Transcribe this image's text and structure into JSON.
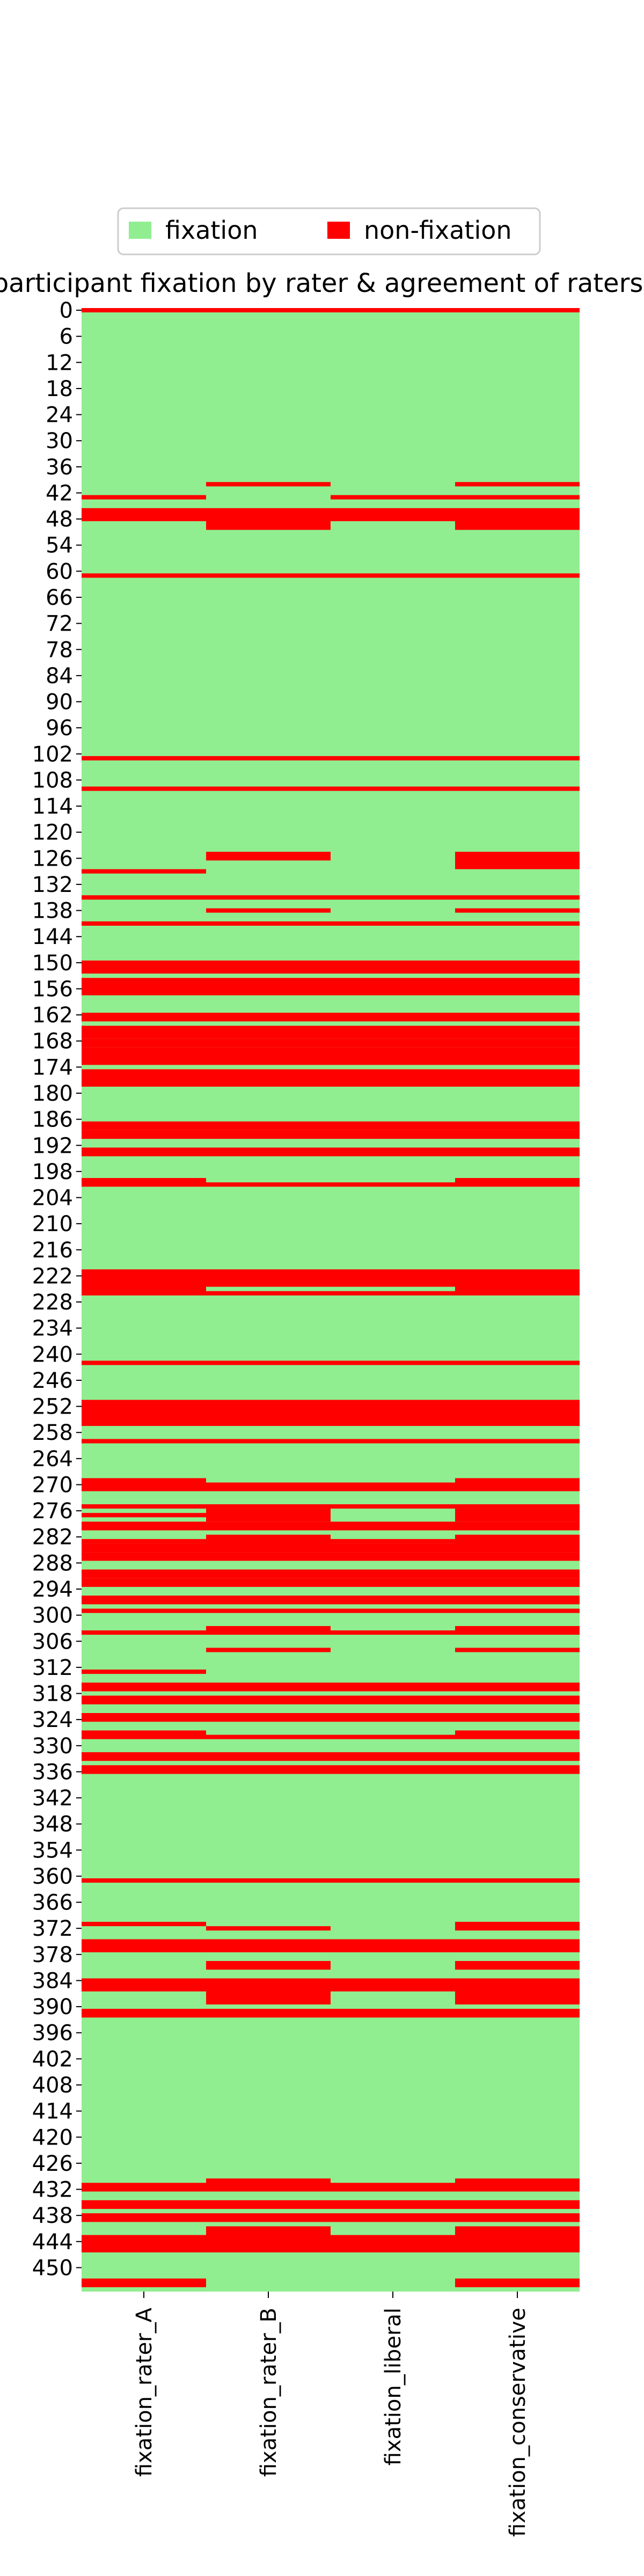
{
  "chart_data": {
    "type": "heatmap",
    "title": "participant fixation by rater & agreement of raters",
    "legend": {
      "placement": "top-center",
      "entries": [
        {
          "label": "fixation",
          "color": "#90ee90"
        },
        {
          "label": "non-fixation",
          "color": "#ff0000"
        }
      ]
    },
    "columns": [
      "fixation_rater_A",
      "fixation_rater_B",
      "fixation_liberal",
      "fixation_conservative"
    ],
    "y_ticks": [
      0,
      6,
      12,
      18,
      24,
      30,
      36,
      42,
      48,
      54,
      60,
      66,
      72,
      78,
      84,
      90,
      96,
      102,
      108,
      114,
      120,
      126,
      132,
      138,
      144,
      150,
      156,
      162,
      168,
      174,
      180,
      186,
      192,
      198,
      204,
      210,
      216,
      222,
      228,
      234,
      240,
      246,
      252,
      258,
      264,
      270,
      276,
      282,
      288,
      294,
      300,
      306,
      312,
      318,
      324,
      330,
      336,
      342,
      348,
      354,
      360,
      366,
      372,
      378,
      384,
      390,
      396,
      402,
      408,
      414,
      420,
      426,
      432,
      438,
      444,
      450
    ],
    "row_count": 456,
    "colors": {
      "fixation": "#90ee90",
      "non_fixation": "#ff0000"
    },
    "non_fixation_rows": [
      [
        [
          0,
          0
        ],
        [
          43,
          43
        ],
        [
          46,
          48
        ],
        [
          61,
          61
        ],
        [
          103,
          103
        ],
        [
          110,
          110
        ],
        [
          129,
          129
        ],
        [
          135,
          135
        ],
        [
          141,
          141
        ],
        [
          150,
          152
        ],
        [
          154,
          157
        ],
        [
          162,
          163
        ],
        [
          165,
          167
        ],
        [
          168,
          169
        ],
        [
          170,
          173
        ],
        [
          175,
          178
        ],
        [
          187,
          188
        ],
        [
          189,
          190
        ],
        [
          193,
          194
        ],
        [
          200,
          201
        ],
        [
          221,
          226
        ],
        [
          242,
          242
        ],
        [
          251,
          256
        ],
        [
          260,
          260
        ],
        [
          269,
          271
        ],
        [
          275,
          275
        ],
        [
          277,
          277
        ],
        [
          279,
          280
        ],
        [
          283,
          283
        ],
        [
          284,
          285
        ],
        [
          286,
          287
        ],
        [
          290,
          291
        ],
        [
          292,
          293
        ],
        [
          296,
          297
        ],
        [
          299,
          299
        ],
        [
          304,
          304
        ],
        [
          313,
          313
        ],
        [
          316,
          317
        ],
        [
          319,
          320
        ],
        [
          323,
          324
        ],
        [
          327,
          328
        ],
        [
          332,
          333
        ],
        [
          335,
          336
        ],
        [
          361,
          361
        ],
        [
          371,
          371
        ],
        [
          375,
          377
        ],
        [
          384,
          386
        ],
        [
          391,
          392
        ],
        [
          431,
          432
        ],
        [
          435,
          436
        ],
        [
          438,
          439
        ],
        [
          443,
          446
        ],
        [
          453,
          454
        ]
      ],
      [
        [
          0,
          0
        ],
        [
          40,
          40
        ],
        [
          46,
          50
        ],
        [
          61,
          61
        ],
        [
          103,
          103
        ],
        [
          110,
          110
        ],
        [
          125,
          126
        ],
        [
          135,
          135
        ],
        [
          138,
          138
        ],
        [
          141,
          141
        ],
        [
          150,
          152
        ],
        [
          154,
          157
        ],
        [
          162,
          163
        ],
        [
          165,
          167
        ],
        [
          168,
          169
        ],
        [
          170,
          173
        ],
        [
          175,
          178
        ],
        [
          187,
          188
        ],
        [
          189,
          190
        ],
        [
          193,
          194
        ],
        [
          201,
          201
        ],
        [
          221,
          224
        ],
        [
          226,
          226
        ],
        [
          242,
          242
        ],
        [
          251,
          256
        ],
        [
          260,
          260
        ],
        [
          270,
          271
        ],
        [
          275,
          275
        ],
        [
          276,
          278
        ],
        [
          279,
          280
        ],
        [
          282,
          285
        ],
        [
          286,
          287
        ],
        [
          290,
          291
        ],
        [
          292,
          293
        ],
        [
          296,
          297
        ],
        [
          299,
          299
        ],
        [
          303,
          304
        ],
        [
          308,
          308
        ],
        [
          316,
          317
        ],
        [
          319,
          320
        ],
        [
          323,
          324
        ],
        [
          328,
          328
        ],
        [
          332,
          333
        ],
        [
          335,
          336
        ],
        [
          361,
          361
        ],
        [
          372,
          372
        ],
        [
          375,
          377
        ],
        [
          380,
          381
        ],
        [
          384,
          389
        ],
        [
          391,
          392
        ],
        [
          430,
          432
        ],
        [
          435,
          436
        ],
        [
          438,
          439
        ],
        [
          441,
          446
        ]
      ],
      [
        [
          0,
          0
        ],
        [
          43,
          43
        ],
        [
          46,
          48
        ],
        [
          61,
          61
        ],
        [
          103,
          103
        ],
        [
          110,
          110
        ],
        [
          135,
          135
        ],
        [
          141,
          141
        ],
        [
          150,
          152
        ],
        [
          154,
          157
        ],
        [
          162,
          163
        ],
        [
          165,
          167
        ],
        [
          168,
          169
        ],
        [
          170,
          173
        ],
        [
          175,
          178
        ],
        [
          187,
          188
        ],
        [
          189,
          190
        ],
        [
          193,
          194
        ],
        [
          201,
          201
        ],
        [
          221,
          224
        ],
        [
          226,
          226
        ],
        [
          242,
          242
        ],
        [
          251,
          256
        ],
        [
          260,
          260
        ],
        [
          270,
          271
        ],
        [
          275,
          275
        ],
        [
          279,
          280
        ],
        [
          283,
          283
        ],
        [
          284,
          285
        ],
        [
          286,
          287
        ],
        [
          290,
          291
        ],
        [
          292,
          293
        ],
        [
          296,
          297
        ],
        [
          299,
          299
        ],
        [
          304,
          304
        ],
        [
          316,
          317
        ],
        [
          319,
          320
        ],
        [
          323,
          324
        ],
        [
          328,
          328
        ],
        [
          332,
          333
        ],
        [
          335,
          336
        ],
        [
          361,
          361
        ],
        [
          375,
          377
        ],
        [
          384,
          386
        ],
        [
          391,
          392
        ],
        [
          431,
          432
        ],
        [
          435,
          436
        ],
        [
          438,
          439
        ],
        [
          443,
          446
        ]
      ],
      [
        [
          0,
          0
        ],
        [
          40,
          40
        ],
        [
          43,
          43
        ],
        [
          46,
          50
        ],
        [
          61,
          61
        ],
        [
          103,
          103
        ],
        [
          110,
          110
        ],
        [
          125,
          128
        ],
        [
          135,
          135
        ],
        [
          138,
          138
        ],
        [
          141,
          141
        ],
        [
          150,
          152
        ],
        [
          154,
          157
        ],
        [
          162,
          163
        ],
        [
          165,
          167
        ],
        [
          168,
          169
        ],
        [
          170,
          173
        ],
        [
          175,
          178
        ],
        [
          187,
          188
        ],
        [
          189,
          190
        ],
        [
          193,
          194
        ],
        [
          200,
          201
        ],
        [
          221,
          226
        ],
        [
          242,
          242
        ],
        [
          251,
          256
        ],
        [
          260,
          260
        ],
        [
          269,
          271
        ],
        [
          275,
          275
        ],
        [
          276,
          278
        ],
        [
          279,
          280
        ],
        [
          282,
          285
        ],
        [
          286,
          287
        ],
        [
          290,
          291
        ],
        [
          292,
          293
        ],
        [
          296,
          297
        ],
        [
          299,
          299
        ],
        [
          303,
          304
        ],
        [
          308,
          308
        ],
        [
          316,
          317
        ],
        [
          319,
          320
        ],
        [
          323,
          324
        ],
        [
          327,
          328
        ],
        [
          332,
          333
        ],
        [
          335,
          336
        ],
        [
          361,
          361
        ],
        [
          371,
          372
        ],
        [
          375,
          377
        ],
        [
          380,
          381
        ],
        [
          384,
          389
        ],
        [
          391,
          392
        ],
        [
          430,
          432
        ],
        [
          435,
          436
        ],
        [
          438,
          439
        ],
        [
          441,
          446
        ],
        [
          453,
          454
        ]
      ]
    ]
  }
}
